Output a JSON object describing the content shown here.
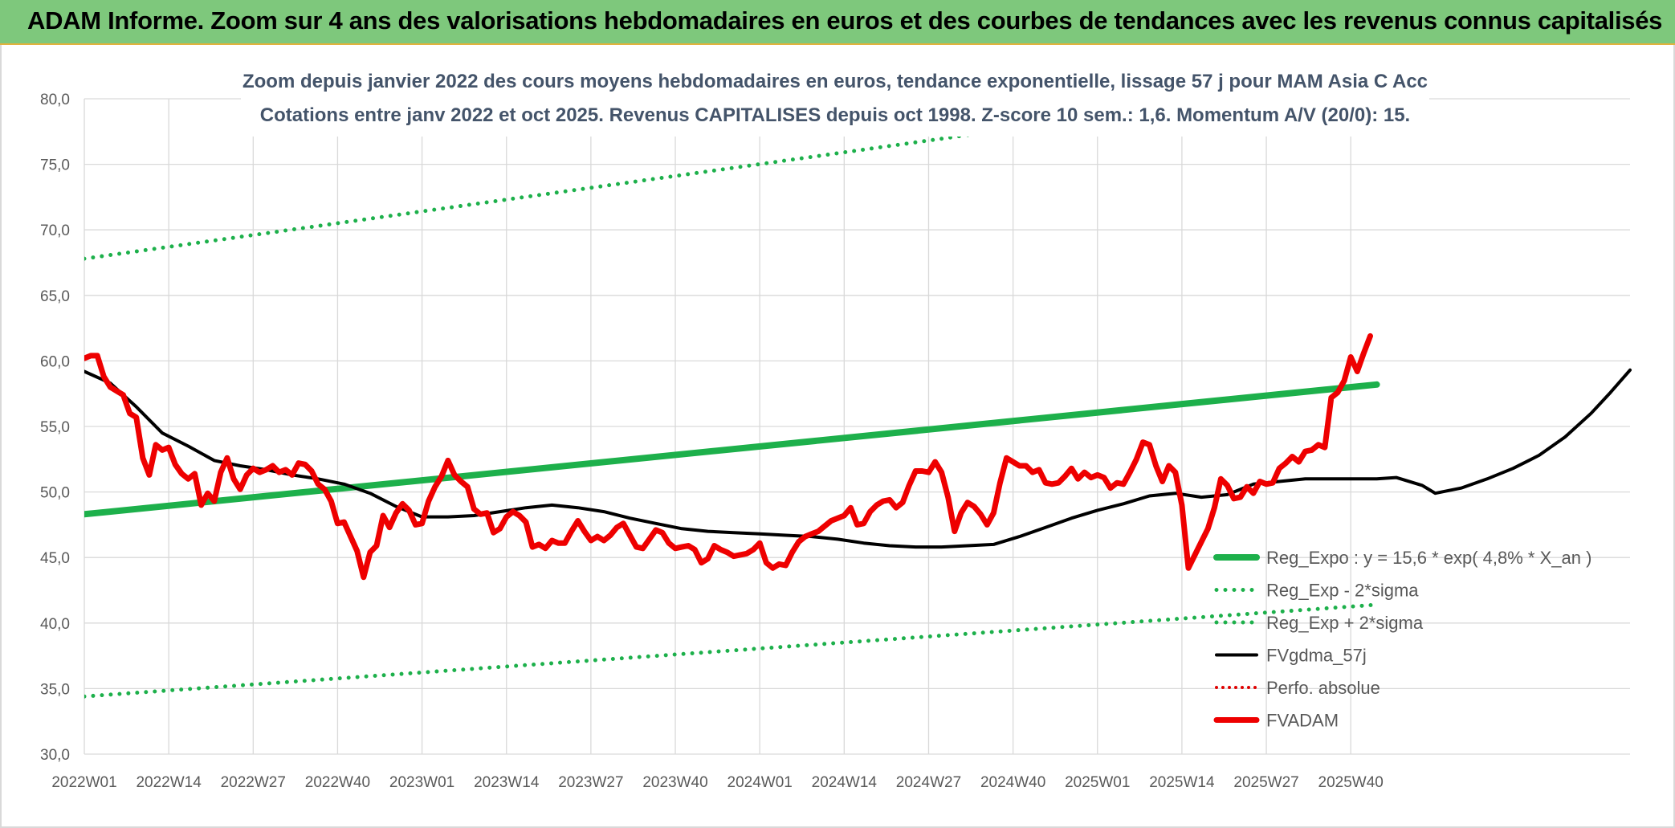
{
  "banner": {
    "title": "ADAM Informe. Zoom sur 4 ans des valorisations hebdomadaires en euros et des courbes de tendances avec les revenus connus capitalisés"
  },
  "colors": {
    "banner_bg": "#7ec87c",
    "reg_expo": "#1db04b",
    "reg_sigma": "#1db04b",
    "fvgdma": "#000000",
    "perfo": "#e00000",
    "fvadam": "#ee0000",
    "title_text": "#44546a"
  },
  "chart_data": {
    "type": "line",
    "title_line1": "Zoom depuis janvier 2022 des cours moyens hebdomadaires en euros, tendance exponentielle, lissage 57 j pour MAM Asia C Acc",
    "title_line2": "Cotations entre janv 2022 et oct 2025. Revenus CAPITALISES depuis oct 1998. Z-score 10 sem.: 1,6. Momentum A/V (20/0): 15.",
    "ylim": [
      30,
      80
    ],
    "y_ticks": [
      "30,0",
      "35,0",
      "40,0",
      "45,0",
      "50,0",
      "55,0",
      "60,0",
      "65,0",
      "70,0",
      "75,0",
      "80,0"
    ],
    "x_ticks": [
      "2022W01",
      "2022W14",
      "2022W27",
      "2022W40",
      "2023W01",
      "2023W14",
      "2023W27",
      "2023W40",
      "2024W01",
      "2024W14",
      "2024W27",
      "2024W40",
      "2025W01",
      "2025W14",
      "2025W27",
      "2025W40"
    ],
    "grid": true,
    "legend_position": "bottom-right",
    "series": [
      {
        "name": "Reg_Expo : y = 15,6 * exp( 4,8% *  X_an )",
        "style": "solid-thick",
        "color": "#1db04b",
        "points": [
          [
            0,
            48.3
          ],
          [
            199,
            58.2
          ]
        ]
      },
      {
        "name": "Reg_Exp - 2*sigma",
        "style": "dotted",
        "color": "#1db04b",
        "points": [
          [
            0,
            34.4
          ],
          [
            199,
            41.4
          ]
        ]
      },
      {
        "name": "Reg_Exp + 2*sigma",
        "style": "dotted",
        "color": "#1db04b",
        "points": [
          [
            0,
            67.8
          ],
          [
            199,
            81.6
          ]
        ]
      },
      {
        "name": "FVgdma_57j",
        "style": "solid",
        "color": "#000000",
        "points": [
          [
            0,
            59.2
          ],
          [
            4,
            58.3
          ],
          [
            8,
            56.5
          ],
          [
            12,
            54.5
          ],
          [
            16,
            53.5
          ],
          [
            20,
            52.4
          ],
          [
            24,
            52.0
          ],
          [
            28,
            51.7
          ],
          [
            32,
            51.3
          ],
          [
            36,
            51.0
          ],
          [
            40,
            50.6
          ],
          [
            44,
            49.9
          ],
          [
            48,
            48.9
          ],
          [
            52,
            48.1
          ],
          [
            56,
            48.1
          ],
          [
            60,
            48.2
          ],
          [
            64,
            48.5
          ],
          [
            68,
            48.8
          ],
          [
            72,
            49.0
          ],
          [
            76,
            48.8
          ],
          [
            80,
            48.5
          ],
          [
            84,
            48.0
          ],
          [
            88,
            47.6
          ],
          [
            92,
            47.2
          ],
          [
            96,
            47.0
          ],
          [
            100,
            46.9
          ],
          [
            104,
            46.8
          ],
          [
            108,
            46.7
          ],
          [
            112,
            46.6
          ],
          [
            116,
            46.4
          ],
          [
            120,
            46.1
          ],
          [
            124,
            45.9
          ],
          [
            128,
            45.8
          ],
          [
            132,
            45.8
          ],
          [
            136,
            45.9
          ],
          [
            140,
            46.0
          ],
          [
            144,
            46.6
          ],
          [
            148,
            47.3
          ],
          [
            152,
            48.0
          ],
          [
            156,
            48.6
          ],
          [
            160,
            49.1
          ],
          [
            164,
            49.7
          ],
          [
            168,
            49.9
          ],
          [
            172,
            49.6
          ],
          [
            176,
            49.8
          ],
          [
            180,
            50.6
          ],
          [
            184,
            50.8
          ],
          [
            188,
            51.0
          ],
          [
            192,
            51.0
          ],
          [
            196,
            51.0
          ],
          [
            199,
            51.0
          ],
          [
            202,
            51.1
          ],
          [
            206,
            50.5
          ],
          [
            208,
            49.9
          ],
          [
            212,
            50.3
          ],
          [
            216,
            51.0
          ],
          [
            220,
            51.8
          ],
          [
            224,
            52.8
          ],
          [
            228,
            54.2
          ],
          [
            232,
            56.0
          ],
          [
            235,
            57.6
          ],
          [
            238,
            59.3
          ]
        ]
      },
      {
        "name": "Perfo. absolue",
        "style": "dotted",
        "color": "#e00000",
        "points": []
      },
      {
        "name": "FVADAM",
        "style": "solid-thick",
        "color": "#ee0000",
        "points": [
          [
            0,
            60.2
          ],
          [
            1,
            60.4
          ],
          [
            2,
            60.4
          ],
          [
            3,
            58.8
          ],
          [
            4,
            58.0
          ],
          [
            5,
            57.7
          ],
          [
            6,
            57.4
          ],
          [
            7,
            56.0
          ],
          [
            8,
            55.7
          ],
          [
            9,
            52.6
          ],
          [
            10,
            51.3
          ],
          [
            11,
            53.6
          ],
          [
            12,
            53.2
          ],
          [
            13,
            53.4
          ],
          [
            14,
            52.1
          ],
          [
            15,
            51.4
          ],
          [
            16,
            51.0
          ],
          [
            17,
            51.4
          ],
          [
            18,
            49.0
          ],
          [
            19,
            49.9
          ],
          [
            20,
            49.3
          ],
          [
            21,
            51.5
          ],
          [
            22,
            52.6
          ],
          [
            23,
            51.0
          ],
          [
            24,
            50.2
          ],
          [
            25,
            51.3
          ],
          [
            26,
            51.8
          ],
          [
            27,
            51.5
          ],
          [
            28,
            51.7
          ],
          [
            29,
            52.0
          ],
          [
            30,
            51.5
          ],
          [
            31,
            51.7
          ],
          [
            32,
            51.3
          ],
          [
            33,
            52.2
          ],
          [
            34,
            52.1
          ],
          [
            35,
            51.6
          ],
          [
            36,
            50.6
          ],
          [
            37,
            50.2
          ],
          [
            38,
            49.3
          ],
          [
            39,
            47.6
          ],
          [
            40,
            47.7
          ],
          [
            41,
            46.6
          ],
          [
            42,
            45.5
          ],
          [
            43,
            43.5
          ],
          [
            44,
            45.4
          ],
          [
            45,
            45.9
          ],
          [
            46,
            48.2
          ],
          [
            47,
            47.3
          ],
          [
            48,
            48.4
          ],
          [
            49,
            49.1
          ],
          [
            50,
            48.6
          ],
          [
            51,
            47.5
          ],
          [
            52,
            47.6
          ],
          [
            53,
            49.3
          ],
          [
            54,
            50.4
          ],
          [
            55,
            51.2
          ],
          [
            56,
            52.4
          ],
          [
            57,
            51.3
          ],
          [
            58,
            50.8
          ],
          [
            59,
            50.4
          ],
          [
            60,
            48.7
          ],
          [
            61,
            48.3
          ],
          [
            62,
            48.4
          ],
          [
            63,
            46.9
          ],
          [
            64,
            47.2
          ],
          [
            65,
            48.1
          ],
          [
            66,
            48.5
          ],
          [
            67,
            48.2
          ],
          [
            68,
            47.7
          ],
          [
            69,
            45.8
          ],
          [
            70,
            46.0
          ],
          [
            71,
            45.7
          ],
          [
            72,
            46.3
          ],
          [
            73,
            46.1
          ],
          [
            74,
            46.1
          ],
          [
            75,
            47.0
          ],
          [
            76,
            47.8
          ],
          [
            77,
            47.0
          ],
          [
            78,
            46.3
          ],
          [
            79,
            46.6
          ],
          [
            80,
            46.3
          ],
          [
            81,
            46.7
          ],
          [
            82,
            47.3
          ],
          [
            83,
            47.6
          ],
          [
            84,
            46.7
          ],
          [
            85,
            45.8
          ],
          [
            86,
            45.7
          ],
          [
            87,
            46.4
          ],
          [
            88,
            47.1
          ],
          [
            89,
            46.9
          ],
          [
            90,
            46.1
          ],
          [
            91,
            45.7
          ],
          [
            92,
            45.8
          ],
          [
            93,
            45.9
          ],
          [
            94,
            45.6
          ],
          [
            95,
            44.6
          ],
          [
            96,
            44.9
          ],
          [
            97,
            45.9
          ],
          [
            98,
            45.6
          ],
          [
            99,
            45.4
          ],
          [
            100,
            45.1
          ],
          [
            101,
            45.2
          ],
          [
            102,
            45.3
          ],
          [
            103,
            45.6
          ],
          [
            104,
            46.1
          ],
          [
            105,
            44.6
          ],
          [
            106,
            44.2
          ],
          [
            107,
            44.5
          ],
          [
            108,
            44.4
          ],
          [
            109,
            45.4
          ],
          [
            110,
            46.2
          ],
          [
            111,
            46.6
          ],
          [
            112,
            46.8
          ],
          [
            113,
            47.0
          ],
          [
            114,
            47.4
          ],
          [
            115,
            47.8
          ],
          [
            116,
            48.0
          ],
          [
            117,
            48.2
          ],
          [
            118,
            48.8
          ],
          [
            119,
            47.5
          ],
          [
            120,
            47.6
          ],
          [
            121,
            48.5
          ],
          [
            122,
            49.0
          ],
          [
            123,
            49.3
          ],
          [
            124,
            49.4
          ],
          [
            125,
            48.8
          ],
          [
            126,
            49.2
          ],
          [
            127,
            50.5
          ],
          [
            128,
            51.6
          ],
          [
            129,
            51.6
          ],
          [
            130,
            51.5
          ],
          [
            131,
            52.3
          ],
          [
            132,
            51.5
          ],
          [
            133,
            49.6
          ],
          [
            134,
            47.0
          ],
          [
            135,
            48.4
          ],
          [
            136,
            49.2
          ],
          [
            137,
            48.9
          ],
          [
            138,
            48.3
          ],
          [
            139,
            47.5
          ],
          [
            140,
            48.4
          ],
          [
            141,
            50.7
          ],
          [
            142,
            52.6
          ],
          [
            143,
            52.3
          ],
          [
            144,
            52.0
          ],
          [
            145,
            52.0
          ],
          [
            146,
            51.5
          ],
          [
            147,
            51.7
          ],
          [
            148,
            50.7
          ],
          [
            149,
            50.6
          ],
          [
            150,
            50.7
          ],
          [
            151,
            51.2
          ],
          [
            152,
            51.8
          ],
          [
            153,
            51.0
          ],
          [
            154,
            51.5
          ],
          [
            155,
            51.1
          ],
          [
            156,
            51.3
          ],
          [
            157,
            51.1
          ],
          [
            158,
            50.3
          ],
          [
            159,
            50.7
          ],
          [
            160,
            50.6
          ],
          [
            161,
            51.5
          ],
          [
            162,
            52.5
          ],
          [
            163,
            53.8
          ],
          [
            164,
            53.6
          ],
          [
            165,
            52.0
          ],
          [
            166,
            50.8
          ],
          [
            167,
            52.0
          ],
          [
            168,
            51.5
          ],
          [
            169,
            49.0
          ],
          [
            170,
            44.2
          ],
          [
            171,
            45.2
          ],
          [
            172,
            46.2
          ],
          [
            173,
            47.2
          ],
          [
            174,
            48.8
          ],
          [
            175,
            51.0
          ],
          [
            176,
            50.5
          ],
          [
            177,
            49.5
          ],
          [
            178,
            49.6
          ],
          [
            179,
            50.4
          ],
          [
            180,
            49.9
          ],
          [
            181,
            50.8
          ],
          [
            182,
            50.6
          ],
          [
            183,
            50.7
          ],
          [
            184,
            51.8
          ],
          [
            185,
            52.2
          ],
          [
            186,
            52.7
          ],
          [
            187,
            52.3
          ],
          [
            188,
            53.1
          ],
          [
            189,
            53.2
          ],
          [
            190,
            53.6
          ],
          [
            191,
            53.4
          ],
          [
            192,
            57.2
          ],
          [
            193,
            57.6
          ],
          [
            194,
            58.5
          ],
          [
            195,
            60.3
          ],
          [
            196,
            59.2
          ],
          [
            197,
            60.6
          ],
          [
            198,
            61.9
          ]
        ]
      }
    ]
  }
}
